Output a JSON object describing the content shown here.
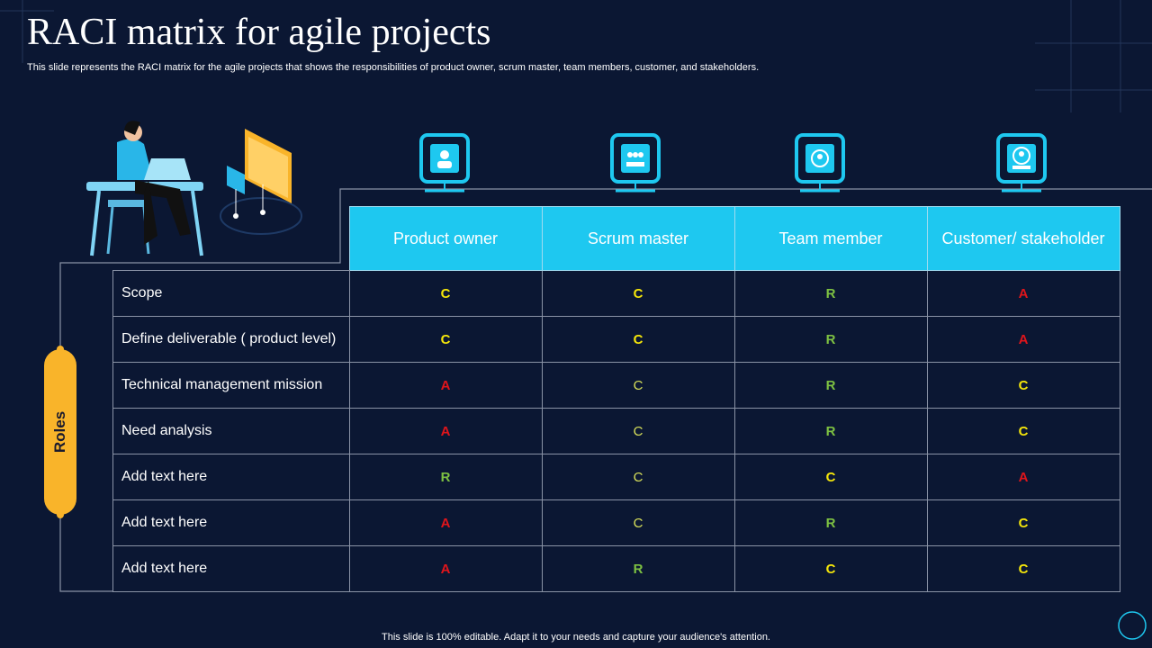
{
  "header": {
    "title": "RACI matrix for agile projects",
    "subtitle": "This slide represents the RACI matrix for the agile projects that shows the responsibilities of product owner, scrum master, team members, customer, and stakeholders."
  },
  "side_label": "Roles",
  "table": {
    "columns": [
      "Product owner",
      "Scrum master",
      "Team member",
      "Customer/ stakeholder"
    ],
    "rows": [
      [
        "Scope",
        "C",
        "C",
        "R",
        "A"
      ],
      [
        "Define deliverable ( product level)",
        "C",
        "C",
        "R",
        "A"
      ],
      [
        "Technical management mission",
        "A",
        "C",
        "R",
        "C"
      ],
      [
        "Need analysis",
        "A",
        "C",
        "R",
        "C"
      ],
      [
        "Add text here",
        "R",
        "C",
        "C",
        "A"
      ],
      [
        "Add text here",
        "A",
        "C",
        "R",
        "C"
      ],
      [
        "Add text here",
        "A",
        "R",
        "C",
        "C"
      ]
    ]
  },
  "footer": "This slide is 100% editable. Adapt it to your needs and capture your audience's attention."
}
